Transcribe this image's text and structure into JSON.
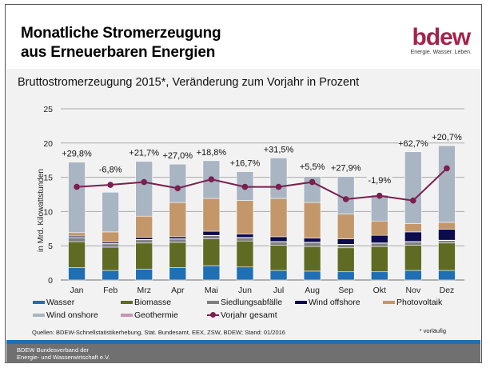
{
  "header": {
    "title_line1": "Monatliche Stromerzeugung",
    "title_line2": "aus Erneuerbaren Energien",
    "logo_text": "bdew",
    "logo_tagline": "Energie. Wasser. Leben.",
    "subtitle": "Bruttostromerzeugung 2015*, Veränderung zum Vorjahr in Prozent"
  },
  "chart_data": {
    "type": "bar",
    "stacked": true,
    "ylabel": "in Mrd. Kilowattstunden",
    "ylim": [
      0,
      25
    ],
    "yticks": [
      0,
      5,
      10,
      15,
      20,
      25
    ],
    "grid": true,
    "legend_position": "bottom",
    "categories": [
      "Jan",
      "Feb",
      "Mrz",
      "Apr",
      "Mai",
      "Jun",
      "Jul",
      "Aug",
      "Sep",
      "Okt",
      "Nov",
      "Dez"
    ],
    "series": [
      {
        "name": "Wasser",
        "color": "#1f6fb5",
        "values": [
          1.8,
          1.4,
          1.6,
          1.8,
          2.1,
          1.9,
          1.4,
          1.3,
          1.2,
          1.2,
          1.4,
          1.4
        ]
      },
      {
        "name": "Biomasse",
        "color": "#5f6b22",
        "values": [
          3.8,
          3.4,
          3.8,
          3.7,
          3.9,
          3.8,
          3.7,
          3.6,
          3.5,
          3.7,
          3.7,
          4.0
        ]
      },
      {
        "name": "Siedlungsabfälle",
        "color": "#7f7f7f",
        "values": [
          0.6,
          0.5,
          0.5,
          0.5,
          0.5,
          0.5,
          0.5,
          0.6,
          0.5,
          0.5,
          0.5,
          0.4
        ]
      },
      {
        "name": "Geothermie",
        "color": "#c995b0",
        "values": [
          0.02,
          0.02,
          0.02,
          0.02,
          0.02,
          0.02,
          0.02,
          0.02,
          0.02,
          0.02,
          0.02,
          0.02
        ]
      },
      {
        "name": "Wind offshore",
        "color": "#0b0b4d",
        "values": [
          0.2,
          0.2,
          0.3,
          0.3,
          0.6,
          0.5,
          0.7,
          0.6,
          0.8,
          1.1,
          1.4,
          1.6
        ]
      },
      {
        "name": "Photovoltaik",
        "color": "#c4976a",
        "values": [
          0.5,
          1.5,
          3.1,
          5.0,
          4.8,
          4.9,
          5.6,
          5.2,
          3.6,
          2.1,
          1.2,
          1.0
        ]
      },
      {
        "name": "Wind onshore",
        "color": "#a9b5c3",
        "values": [
          10.3,
          5.8,
          8.0,
          5.6,
          5.5,
          4.2,
          5.9,
          3.8,
          5.5,
          3.8,
          10.5,
          11.2
        ]
      }
    ],
    "line_series": {
      "name": "Vorjahr gesamt",
      "color": "#7b1f4e",
      "values": [
        13.6,
        13.9,
        14.3,
        13.4,
        14.7,
        13.6,
        13.6,
        14.3,
        11.8,
        12.3,
        11.6,
        16.3
      ]
    },
    "annotations": [
      "+29,8%",
      "-6,8%",
      "+21,7%",
      "+27,0%",
      "+18,8%",
      "+16,7%",
      "+31,5%",
      "+5,5%",
      "+27,9%",
      "-1,9%",
      "+62,7%",
      "+20,7%"
    ]
  },
  "legend_order": [
    "Wasser",
    "Biomasse",
    "Siedlungsabfälle",
    "Wind offshore",
    "Photovoltaik",
    "Wind onshore",
    "Geothermie",
    "Vorjahr gesamt"
  ],
  "footer": {
    "sources": "Quellen: BDEW-Schnellstatistikerhebung, Stat. Bundesamt, EEX, ZSW, BDEW; Stand: 01/2016",
    "note": "* vorläufig",
    "org_line1": "BDEW Bundesverband der",
    "org_line2": "Energie- und Wasserwirtschaft e.V."
  }
}
